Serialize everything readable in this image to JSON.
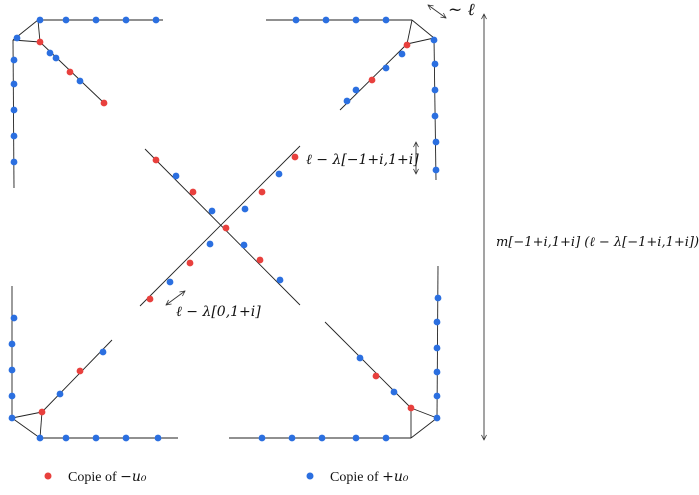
{
  "colors": {
    "red": "#e8403d",
    "blue": "#2b6fe0",
    "line": "#222222"
  },
  "labels": {
    "top_right_scale": "~ ℓ",
    "diag_top": "ℓ − λ[−1+i,1+i]",
    "diag_bottom": "ℓ − λ[0,1+i]",
    "side": "m[−1+i,1+i] (ℓ − λ[−1+i,1+i])"
  },
  "legend": {
    "red_prefix": "Copie of ",
    "red_math": "−u₀",
    "blue_prefix": "Copie of ",
    "blue_math": "+u₀"
  }
}
